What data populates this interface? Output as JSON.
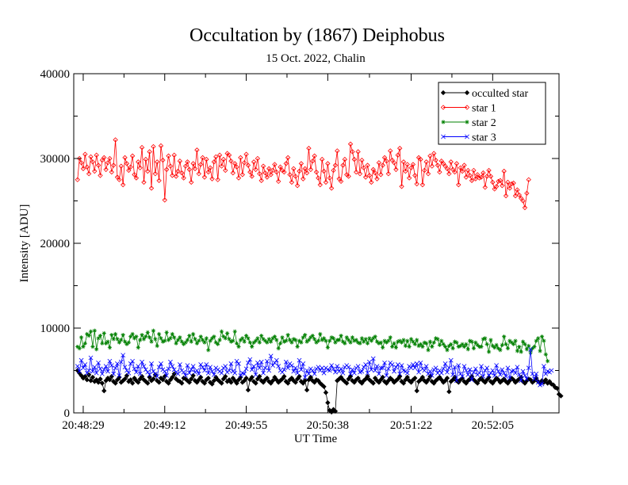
{
  "chart_data": {
    "type": "line",
    "title": "Occultation by (1867) Deiphobus",
    "subtitle": "15 Oct. 2022, Chalin",
    "xlabel": "UT Time",
    "ylabel": "Intensity [ADU]",
    "x_start": "20:48:26",
    "x_end": "20:52:37",
    "x_interval_s": 1,
    "xlim": [
      "20:48:24",
      "20:52:40"
    ],
    "ylim": [
      0,
      40000
    ],
    "x_ticks": [
      "20:48:29",
      "20:49:12",
      "20:49:55",
      "20:50:38",
      "20:51:22",
      "20:52:05"
    ],
    "y_ticks": [
      0,
      10000,
      20000,
      30000,
      40000
    ],
    "grid": false,
    "legend_position": "top-right",
    "series": [
      {
        "name": "occulted star",
        "color": "#000000",
        "marker": "diamond",
        "values": [
          5000,
          4700,
          4400,
          4100,
          4300,
          3900,
          4500,
          3800,
          4200,
          3700,
          3900,
          3600,
          4000,
          3500,
          2600,
          3800,
          4100,
          3900,
          4300,
          3700,
          3500,
          3900,
          4200,
          3600,
          3800,
          4000,
          4400,
          3700,
          3900,
          3500,
          4100,
          3800,
          3600,
          4000,
          4300,
          3900,
          3700,
          3500,
          4200,
          3800,
          4000,
          4500,
          3800,
          3600,
          4100,
          3900,
          4300,
          3700,
          3500,
          3900,
          4200,
          4600,
          4000,
          3800,
          3700,
          3500,
          4100,
          4000,
          3800,
          3600,
          4000,
          4400,
          3800,
          3600,
          3900,
          4200,
          3700,
          3500,
          3900,
          4100,
          3600,
          3400,
          3800,
          4200,
          3900,
          3700,
          3500,
          4000,
          4300,
          3700,
          3900,
          3600,
          4100,
          3800,
          3500,
          3900,
          4200,
          3600,
          3800,
          4100,
          2700,
          3900,
          4200,
          3700,
          3500,
          4000,
          4300,
          3800,
          3600,
          3900,
          4100,
          3700,
          3500,
          3800,
          4200,
          3900,
          3600,
          3800,
          4000,
          4300,
          3700,
          3500,
          3900,
          4100,
          3800,
          3600,
          4000,
          4300,
          3700,
          3500,
          3800,
          2700,
          3900,
          4200,
          3800,
          3600,
          3900,
          3800,
          3500,
          3300,
          3100,
          2400,
          1200,
          300,
          100,
          400,
          200,
          3800,
          4000,
          4200,
          3900,
          3700,
          3500,
          4000,
          4300,
          3800,
          3600,
          3900,
          4100,
          3700,
          3500,
          3800,
          4000,
          4300,
          3900,
          3700,
          3500,
          4100,
          3800,
          3600,
          3900,
          4200,
          3700,
          3500,
          3800,
          4100,
          3900,
          3600,
          3800,
          4000,
          4300,
          3700,
          3500,
          3900,
          4200,
          3800,
          3600,
          3900,
          4100,
          2600,
          3700,
          3900,
          4200,
          3800,
          3600,
          3900,
          4300,
          3700,
          3500,
          3800,
          4000,
          4200,
          3900,
          3600,
          3800,
          4100,
          2500,
          3700,
          3900,
          4200,
          3800,
          3600,
          3900,
          4100,
          3700,
          3500,
          3800,
          4000,
          4300,
          3900,
          3700,
          3500,
          3900,
          4100,
          3800,
          3600,
          3900,
          4200,
          3700,
          3500,
          3800,
          4100,
          3900,
          3600,
          3800,
          4000,
          3700,
          3500,
          3800,
          4100,
          3900,
          3600,
          3800,
          4000,
          4200,
          3700,
          3500,
          3800,
          4000,
          3900,
          3600,
          3800,
          4100,
          3700,
          3500,
          3800,
          3600,
          3900,
          3500,
          3700,
          3400,
          3300,
          3000,
          2900,
          2200,
          2000
        ]
      },
      {
        "name": "star 1",
        "color": "#ff0000",
        "marker": "diamond",
        "values": [
          27500,
          30000,
          29500,
          28800,
          30500,
          29000,
          28200,
          30200,
          29600,
          28500,
          30400,
          29200,
          28000,
          29800,
          30100,
          28700,
          29500,
          30000,
          28400,
          29200,
          32200,
          27800,
          27500,
          29100,
          26900,
          30100,
          29400,
          28600,
          29000,
          30300,
          28100,
          27700,
          29600,
          28900,
          31300,
          27200,
          29900,
          28500,
          30800,
          26500,
          31400,
          28200,
          29600,
          27400,
          31500,
          29800,
          25100,
          28700,
          30300,
          29100,
          28000,
          30400,
          27900,
          28500,
          29700,
          28300,
          27700,
          29100,
          29600,
          28700,
          27200,
          29400,
          28800,
          31000,
          28200,
          29300,
          30100,
          27800,
          29900,
          28400,
          28900,
          27600,
          29600,
          30200,
          27500,
          30400,
          29100,
          29900,
          28600,
          30600,
          30400,
          29700,
          28300,
          29400,
          29000,
          27700,
          30100,
          28100,
          29500,
          30500,
          29200,
          28400,
          27900,
          29600,
          28700,
          30000,
          28200,
          27400,
          29100,
          28300,
          27800,
          28800,
          28100,
          28600,
          29300,
          28400,
          27300,
          29000,
          28600,
          28400,
          29400,
          30100,
          28100,
          27200,
          28800,
          27900,
          26800,
          28500,
          29400,
          27600,
          28800,
          28300,
          31200,
          28700,
          29700,
          30300,
          28400,
          27700,
          26900,
          29900,
          28500,
          27200,
          29400,
          27700,
          26500,
          28600,
          29200,
          30900,
          27600,
          27300,
          29200,
          29900,
          28100,
          27900,
          31700,
          30800,
          29900,
          28400,
          30800,
          28200,
          29800,
          28900,
          27800,
          29200,
          28000,
          27200,
          28700,
          28300,
          27600,
          29500,
          28100,
          29200,
          30100,
          29700,
          28200,
          30900,
          29800,
          29500,
          28700,
          30400,
          31200,
          26700,
          29600,
          28500,
          29300,
          27700,
          28900,
          29300,
          28000,
          27000,
          30100,
          29900,
          26900,
          28600,
          29600,
          28200,
          30300,
          29100,
          30600,
          29800,
          29200,
          28400,
          29700,
          29400,
          29100,
          28800,
          28200,
          29600,
          28700,
          28400,
          29400,
          26900,
          28900,
          28500,
          29200,
          27800,
          28600,
          28000,
          27400,
          28600,
          27600,
          28100,
          27700,
          27800,
          28300,
          26600,
          27900,
          28600,
          27900,
          27200,
          26400,
          26700,
          27300,
          27400,
          26800,
          28500,
          25600,
          27200,
          26500,
          27000,
          27100,
          25600,
          26300,
          25700,
          25300,
          25000,
          24200,
          25900,
          27500
        ]
      },
      {
        "name": "star 2",
        "color": "#008000",
        "marker": "star",
        "values": [
          7800,
          7600,
          8900,
          7800,
          8200,
          9300,
          9100,
          9600,
          7800,
          9700,
          7500,
          8800,
          9100,
          8200,
          9400,
          8200,
          8400,
          7700,
          9200,
          8700,
          9300,
          8700,
          8300,
          8600,
          9200,
          8400,
          8100,
          8300,
          9000,
          9300,
          8800,
          9000,
          7700,
          8600,
          9200,
          8700,
          9000,
          9500,
          8900,
          8400,
          9700,
          8700,
          7900,
          9300,
          8800,
          8400,
          8500,
          9500,
          8600,
          8800,
          9300,
          8900,
          8200,
          8600,
          8900,
          8400,
          8100,
          8300,
          8600,
          9100,
          8400,
          9300,
          8700,
          8200,
          8500,
          9000,
          8600,
          8300,
          8800,
          7400,
          8500,
          8800,
          9000,
          8300,
          8100,
          8600,
          9600,
          9000,
          8800,
          9400,
          8700,
          8400,
          8500,
          9600,
          8200,
          7800,
          8600,
          8800,
          8400,
          9100,
          8800,
          8300,
          7800,
          8300,
          8500,
          8800,
          8300,
          9100,
          8700,
          8500,
          8300,
          8700,
          8400,
          8800,
          9000,
          8600,
          7600,
          8200,
          8900,
          8400,
          8500,
          9200,
          8600,
          8300,
          8700,
          8600,
          7800,
          8500,
          8300,
          8900,
          9200,
          8400,
          8600,
          8900,
          9100,
          8700,
          8300,
          8500,
          9300,
          8600,
          8800,
          8500,
          7700,
          8500,
          8900,
          8800,
          8300,
          8600,
          8600,
          9100,
          8400,
          8200,
          8900,
          8600,
          8300,
          8900,
          8500,
          8600,
          8300,
          8200,
          8800,
          8400,
          8700,
          8200,
          8800,
          8500,
          8800,
          9000,
          8400,
          8200,
          8300,
          7700,
          8500,
          8300,
          8500,
          8900,
          7800,
          8200,
          7700,
          8400,
          8500,
          8300,
          8600,
          7900,
          8500,
          7800,
          8700,
          8400,
          8100,
          8600,
          7900,
          8100,
          7800,
          8300,
          8200,
          7400,
          8400,
          7800,
          8300,
          8800,
          8700,
          8000,
          8500,
          8100,
          7800,
          7400,
          7900,
          8100,
          7600,
          8400,
          8300,
          7800,
          7900,
          8100,
          7800,
          8100,
          7500,
          8500,
          8400,
          7600,
          8300,
          8000,
          7800,
          7800,
          8700,
          8800,
          8100,
          7200,
          8600,
          7900,
          7700,
          8000,
          7600,
          7400,
          8000,
          9000,
          8100,
          7600,
          8500,
          8300,
          8100,
          8500,
          7300,
          7800,
          7200,
          8400,
          8100,
          7500,
          7900,
          7100,
          7600,
          7800,
          8500,
          8800,
          7300,
          9000,
          8500,
          6900,
          6100
        ]
      },
      {
        "name": "star 3",
        "color": "#0000ff",
        "marker": "x",
        "values": [
          5500,
          4900,
          6200,
          5300,
          5700,
          4700,
          5000,
          6500,
          4900,
          5400,
          4700,
          5900,
          5200,
          4600,
          5100,
          5500,
          4900,
          6100,
          5600,
          4600,
          5300,
          5800,
          4400,
          6000,
          6800,
          5400,
          5000,
          4700,
          5800,
          6100,
          5200,
          4800,
          5500,
          4600,
          6000,
          5500,
          5100,
          4800,
          4500,
          5800,
          4900,
          4600,
          4300,
          5400,
          5800,
          5100,
          4900,
          4400,
          5200,
          6000,
          5500,
          5100,
          4800,
          4600,
          5700,
          5000,
          4800,
          4400,
          5600,
          4700,
          5100,
          5500,
          4800,
          5000,
          4600,
          5700,
          5400,
          5000,
          5700,
          4700,
          5400,
          4900,
          4500,
          5300,
          5100,
          4900,
          4700,
          5300,
          5500,
          4800,
          5000,
          5800,
          4900,
          4700,
          6100,
          5800,
          4400,
          4700,
          4600,
          5200,
          5900,
          6300,
          5100,
          5500,
          4500,
          5900,
          5300,
          6000,
          4700,
          5300,
          6100,
          5000,
          6700,
          5600,
          5900,
          6200,
          5500,
          5000,
          4800,
          5100,
          6000,
          5300,
          5800,
          5600,
          4900,
          5300,
          4700,
          6200,
          5100,
          5800,
          4200,
          5000,
          4600,
          5200,
          5000,
          4600,
          5200,
          5400,
          5000,
          5300,
          4700,
          5300,
          5100,
          5000,
          5600,
          5200,
          4800,
          5500,
          4900,
          5200,
          4700,
          5400,
          5600,
          5400,
          4600,
          5100,
          4700,
          5300,
          5500,
          4800,
          4900,
          5400,
          5700,
          4700,
          6000,
          5100,
          6400,
          5000,
          5500,
          4600,
          5300,
          5300,
          5900,
          4400,
          5200,
          5900,
          5700,
          4900,
          5400,
          5700,
          4600,
          5600,
          5000,
          4900,
          4700,
          5500,
          5300,
          5700,
          5300,
          5800,
          4800,
          5900,
          5200,
          5000,
          5500,
          4600,
          4900,
          4400,
          5100,
          5300,
          4700,
          5000,
          4700,
          5200,
          5800,
          4800,
          5300,
          6200,
          4500,
          5400,
          3800,
          5600,
          4600,
          4300,
          5500,
          5000,
          4500,
          5100,
          3900,
          4800,
          5200,
          4500,
          4700,
          5500,
          4300,
          5000,
          5300,
          4400,
          4700,
          5000,
          4400,
          5600,
          4900,
          4500,
          5100,
          4700,
          4300,
          5300,
          4100,
          4900,
          5000,
          4700,
          5400,
          4500,
          3800,
          4900,
          4400,
          4000,
          5300,
          7500,
          4600,
          4000,
          4600,
          3600,
          3300,
          3400,
          5500,
          4600,
          4900,
          4800,
          5000
        ]
      }
    ]
  }
}
